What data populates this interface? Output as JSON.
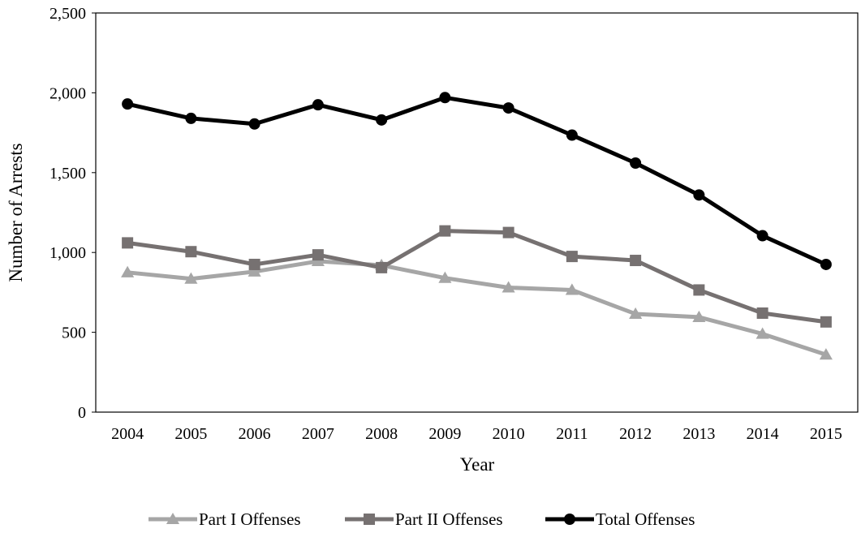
{
  "chart_data": {
    "type": "line",
    "title": "",
    "xlabel": "Year",
    "ylabel": "Number of Arrests",
    "x": [
      "2004",
      "2005",
      "2006",
      "2007",
      "2008",
      "2009",
      "2010",
      "2011",
      "2012",
      "2013",
      "2014",
      "2015"
    ],
    "ylim": [
      0,
      2500
    ],
    "yticks": [
      0,
      500,
      1000,
      1500,
      2000,
      2500
    ],
    "ytick_labels": [
      "0",
      "500",
      "1,000",
      "1,500",
      "2,000",
      "2,500"
    ],
    "grid": false,
    "legend_position": "bottom",
    "series": [
      {
        "name": "Part I Offenses",
        "color": "#a6a6a6",
        "marker": "triangle",
        "values": [
          875,
          835,
          880,
          945,
          920,
          840,
          780,
          765,
          615,
          595,
          490,
          360
        ]
      },
      {
        "name": "Part II Offenses",
        "color": "#767171",
        "marker": "square",
        "values": [
          1060,
          1005,
          925,
          985,
          905,
          1135,
          1125,
          975,
          950,
          765,
          620,
          565
        ]
      },
      {
        "name": "Total Offenses",
        "color": "#000000",
        "marker": "circle",
        "values": [
          1930,
          1840,
          1805,
          1925,
          1830,
          1970,
          1905,
          1735,
          1560,
          1360,
          1105,
          925
        ]
      }
    ]
  }
}
